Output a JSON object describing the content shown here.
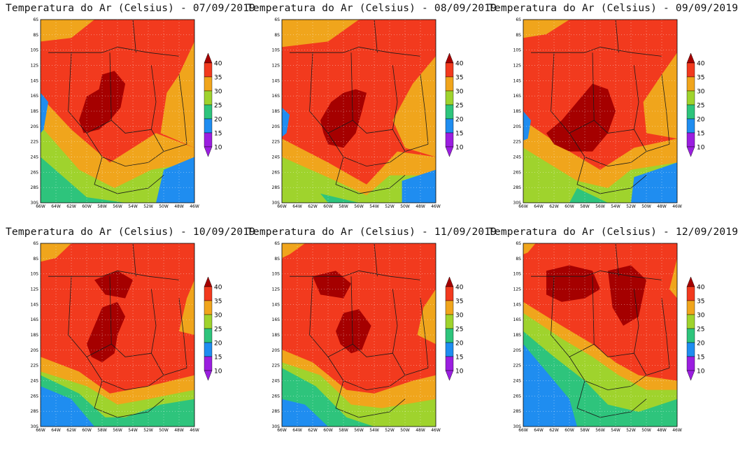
{
  "variable": "Temperatura do Ar (Celsius)",
  "panels": [
    {
      "title": "Temperatura do Ar (Celsius)  - 07/09/2019",
      "date": "07/09/2019"
    },
    {
      "title": "Temperatura do Ar (Celsius)  - 08/09/2019",
      "date": "08/09/2019"
    },
    {
      "title": "Temperatura do Ar (Celsius)  - 09/09/2019",
      "date": "09/09/2019"
    },
    {
      "title": "Temperatura do Ar (Celsius)  - 10/09/2019",
      "date": "10/09/2019"
    },
    {
      "title": "Temperatura do Ar (Celsius)  - 11/09/2019",
      "date": "11/09/2019"
    },
    {
      "title": "Temperatura do Ar (Celsius)  - 12/09/2019",
      "date": "12/09/2019"
    }
  ],
  "colorbar": {
    "labels": [
      "40",
      "35",
      "30",
      "25",
      "20",
      "15",
      "10"
    ],
    "colors": [
      "#a50000",
      "#f23a1e",
      "#f0a51c",
      "#9fd32d",
      "#2ec47c",
      "#1f8df0",
      "#9b1ee0"
    ]
  },
  "lat_ticks": [
    "6S",
    "8S",
    "10S",
    "12S",
    "14S",
    "16S",
    "18S",
    "20S",
    "22S",
    "24S",
    "26S",
    "28S",
    "30S"
  ],
  "lon_ticks": [
    "66W",
    "64W",
    "62W",
    "60W",
    "58W",
    "56W",
    "54W",
    "52W",
    "50W",
    "48W",
    "46W"
  ],
  "map_colors": {
    "very_hot": "#a50000",
    "hot": "#f23a1e",
    "warm": "#f0a51c",
    "mild": "#9fd32d",
    "cool": "#2ec47c",
    "cold": "#1f8df0",
    "very_cold": "#9b1ee0"
  }
}
